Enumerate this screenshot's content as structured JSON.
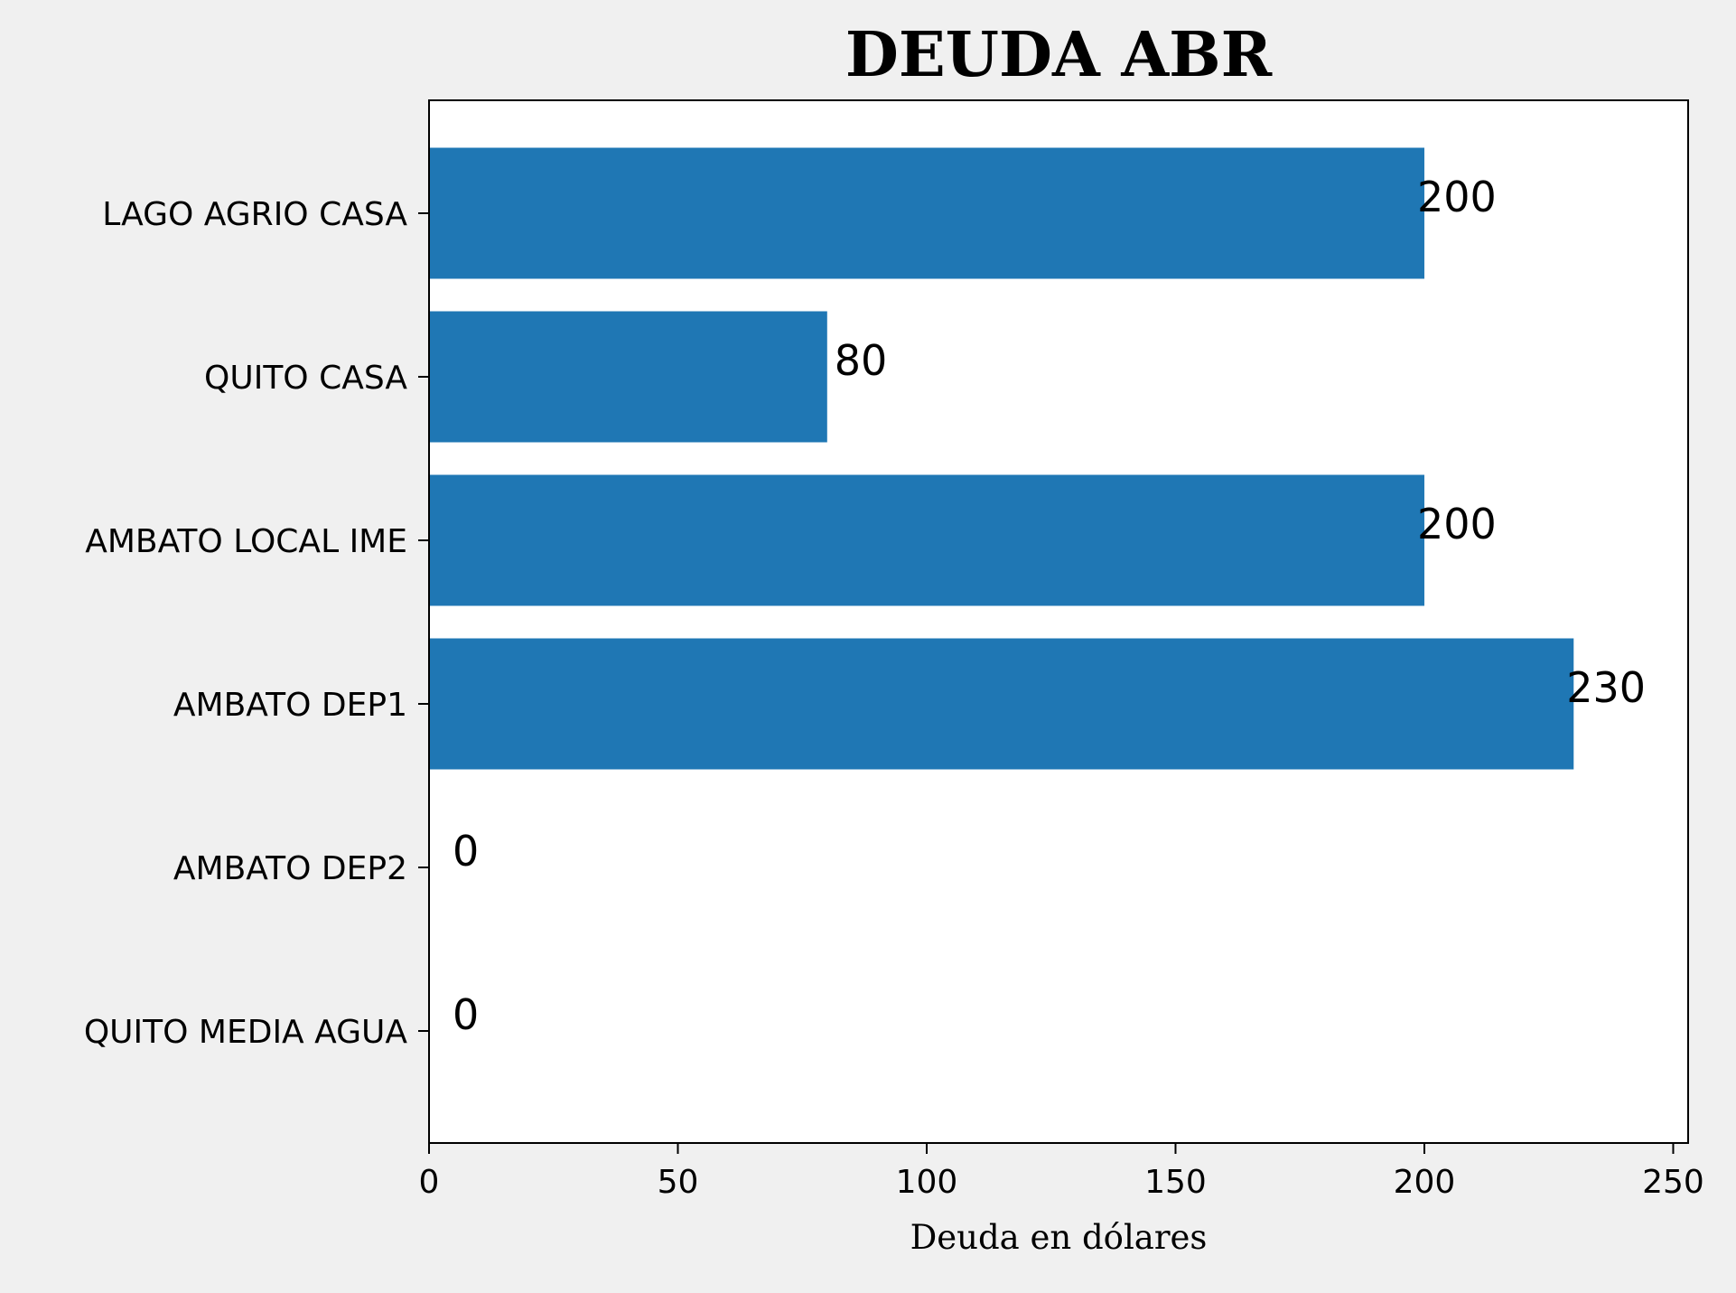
{
  "chart_data": {
    "type": "bar",
    "orientation": "horizontal",
    "title": "DEUDA ABR",
    "xlabel": "Deuda en dólares",
    "ylabel": "",
    "categories": [
      "LAGO AGRIO CASA",
      "QUITO CASA",
      "AMBATO LOCAL IME",
      "AMBATO DEP1",
      "AMBATO DEP2",
      "QUITO MEDIA AGUA"
    ],
    "values": [
      200,
      80,
      200,
      230,
      0,
      0
    ],
    "data_labels": [
      "200",
      "80",
      "200",
      "230",
      "0",
      "0"
    ],
    "xlim": [
      0,
      253
    ],
    "x_ticks": [
      0,
      50,
      100,
      150,
      200,
      250
    ],
    "x_tick_labels": [
      "0",
      "50",
      "100",
      "150",
      "200",
      "250"
    ],
    "grid": false,
    "legend": "none",
    "colors": {
      "bar": "#1f77b4",
      "background": "#f0f0f0",
      "plot_area": "#ffffff",
      "text": "#000000"
    }
  }
}
